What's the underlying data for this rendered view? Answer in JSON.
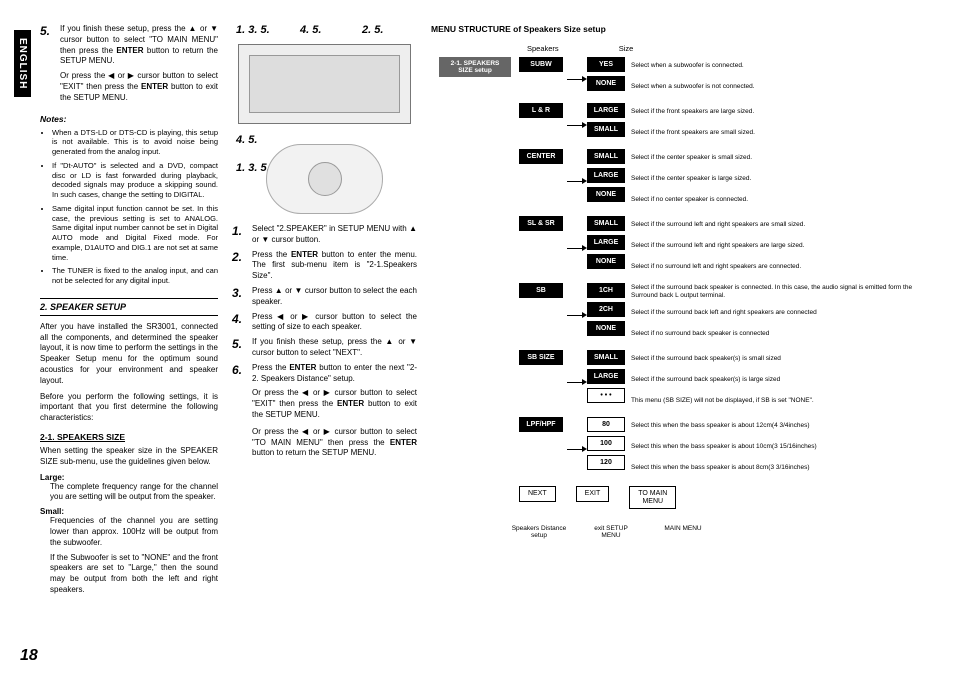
{
  "lang_tab": "ENGLISH",
  "page_number": "18",
  "col1": {
    "step5": {
      "num": "5.",
      "text_a": "If you finish these setup, press the ▲ or ▼ cursor button to select \"TO MAIN MENU\" then press the ",
      "text_enter": "ENTER",
      "text_b": " button to return the SETUP MENU."
    },
    "orline_a": "Or press the ◀ or ▶ cursor button to select \"EXIT\" then press the ",
    "orline_enter": "ENTER",
    "orline_b": " button to exit the SETUP MENU.",
    "notes_head": "Notes:",
    "notes": [
      "When a DTS-LD or DTS-CD is playing, this setup is not available. This is to avoid noise being generated from the analog input.",
      "If \"Dt-AUTO\" is selected and a DVD, compact disc or LD is fast forwarded during playback, decoded signals may produce a skipping sound. In such cases, change the setting to DIGITAL.",
      "Same digital input function cannot be set. In this case, the previous setting is set to ANALOG. Same digital input number cannot be set in Digital AUTO mode and Digital Fixed mode. For example, D1AUTO and DIG.1 are not set at same time.",
      "The TUNER is fixed to the analog input, and can not be selected for any digital input."
    ],
    "section": "2. SPEAKER SETUP",
    "p1": "After you have installed the SR3001, connected all the components, and determined the speaker layout, it is now time to perform the settings in the Speaker Setup menu for the optimum sound acoustics for your environment and speaker layout.",
    "p2": "Before you perform the following settings, it is important that you first determine the following characteristics:",
    "sub21": "2-1. SPEAKERS SIZE",
    "p3": "When setting the speaker size in the SPEAKER SIZE sub-menu, use the guidelines given below.",
    "large_t": "Large:",
    "large_d": "The complete frequency range for the channel you are setting will be output from the speaker.",
    "small_t": "Small:",
    "small_d": "Frequencies of the channel you are setting lower than approx. 100Hz will be output from the subwoofer.",
    "small_d2": "If the Subwoofer is set to \"NONE\" and the front speakers are set to \"Large,\" then the sound may be output from both the left and right speakers."
  },
  "col2": {
    "labels_top": {
      "l1": "1. 3. 5.",
      "l2": "4. 5.",
      "l3": "2. 5."
    },
    "labels_mid": {
      "l1": "4. 5.",
      "l2": "1. 3. 5.",
      "l3": "2. 5."
    },
    "steps": [
      {
        "n": "1.",
        "t": "Select \"2.SPEAKER\" in SETUP MENU with ▲ or ▼ cursor button."
      },
      {
        "n": "2.",
        "t": "Press the ENTER button to enter the menu. The first sub-menu item is \"2-1.Speakers Size\"."
      },
      {
        "n": "3.",
        "t": "Press ▲ or ▼ cursor button to select the each speaker."
      },
      {
        "n": "4.",
        "t": "Press ◀ or ▶ cursor button to select the setting of size to each speaker."
      },
      {
        "n": "5.",
        "t": "If you finish these setup, press the ▲ or ▼ cursor button to select \"NEXT\"."
      },
      {
        "n": "6.",
        "t": "Press the ENTER button to enter the next \"2-2. Speakers Distance\" setup."
      }
    ],
    "tail1": "Or press the ◀ or ▶ cursor button to select \"EXIT\" then press the ENTER button to exit the SETUP MENU.",
    "tail2": "Or press the ◀ or ▶ cursor button to select \"TO MAIN MENU\" then press the ENTER button to return the SETUP MENU."
  },
  "flow": {
    "title": "MENU STRUCTURE of Speakers Size setup",
    "h_speakers": "Speakers",
    "h_size": "Size",
    "root": "2-1. SPEAKERS SIZE setup",
    "groups": [
      {
        "menu": "SUBW",
        "opts": [
          {
            "label": "YES",
            "hl": true,
            "desc": "Select when a subwoofer is connected."
          },
          {
            "label": "NONE",
            "hl": true,
            "desc": "Select when a subwoofer is not connected."
          }
        ]
      },
      {
        "menu": "L & R",
        "opts": [
          {
            "label": "LARGE",
            "hl": true,
            "desc": "Select if the front speakers are large sized."
          },
          {
            "label": "SMALL",
            "hl": true,
            "desc": "Select if the front speakers are small sized."
          }
        ]
      },
      {
        "menu": "CENTER",
        "opts": [
          {
            "label": "SMALL",
            "hl": true,
            "desc": "Select if the center speaker is small sized."
          },
          {
            "label": "LARGE",
            "hl": true,
            "desc": "Select if the center speaker is large sized."
          },
          {
            "label": "NONE",
            "hl": true,
            "desc": "Select if no center speaker is connected."
          }
        ]
      },
      {
        "menu": "SL & SR",
        "opts": [
          {
            "label": "SMALL",
            "hl": true,
            "desc": "Select if the surround left and right speakers are small sized."
          },
          {
            "label": "LARGE",
            "hl": true,
            "desc": "Select if the surround left and right speakers are large sized."
          },
          {
            "label": "NONE",
            "hl": true,
            "desc": "Select if no surround left and right speakers are connected."
          }
        ]
      },
      {
        "menu": "SB",
        "opts": [
          {
            "label": "1CH",
            "hl": true,
            "desc": "Select if the surround back speaker is connected. In this case, the audio signal is emitted form the Surround back L output terminal."
          },
          {
            "label": "2CH",
            "hl": true,
            "desc": "Select if the surround back left and right speakers are connected"
          },
          {
            "label": "NONE",
            "hl": true,
            "desc": "Select if no surround back speaker is connected"
          }
        ]
      },
      {
        "menu": "SB SIZE",
        "opts": [
          {
            "label": "SMALL",
            "hl": true,
            "desc": "Select if the surround back speaker(s) is small sized"
          },
          {
            "label": "LARGE",
            "hl": true,
            "desc": "Select if the surround back speaker(s) is large sized"
          },
          {
            "label": "• • •",
            "hl": false,
            "desc": "This menu (SB SIZE) will not be displayed, if SB is set \"NONE\"."
          }
        ]
      },
      {
        "menu": "LPF/HPF",
        "opts": [
          {
            "label": "80",
            "hl": false,
            "desc": "Select this when the bass speaker is about 12cm(4 3/4inches)"
          },
          {
            "label": "100",
            "hl": false,
            "desc": "Select this when the bass speaker is about 10cm(3 15/16inches)"
          },
          {
            "label": "120",
            "hl": false,
            "desc": "Select this when the bass speaker is about 8cm(3 3/16inches)"
          }
        ]
      }
    ],
    "nav": {
      "next": "NEXT",
      "exit": "EXIT",
      "main": "TO MAIN\nMENU"
    },
    "bottom": {
      "b1": "Speakers Distance\nsetup",
      "b2": "exit SETUP\nMENU",
      "b3": "MAIN MENU"
    }
  }
}
